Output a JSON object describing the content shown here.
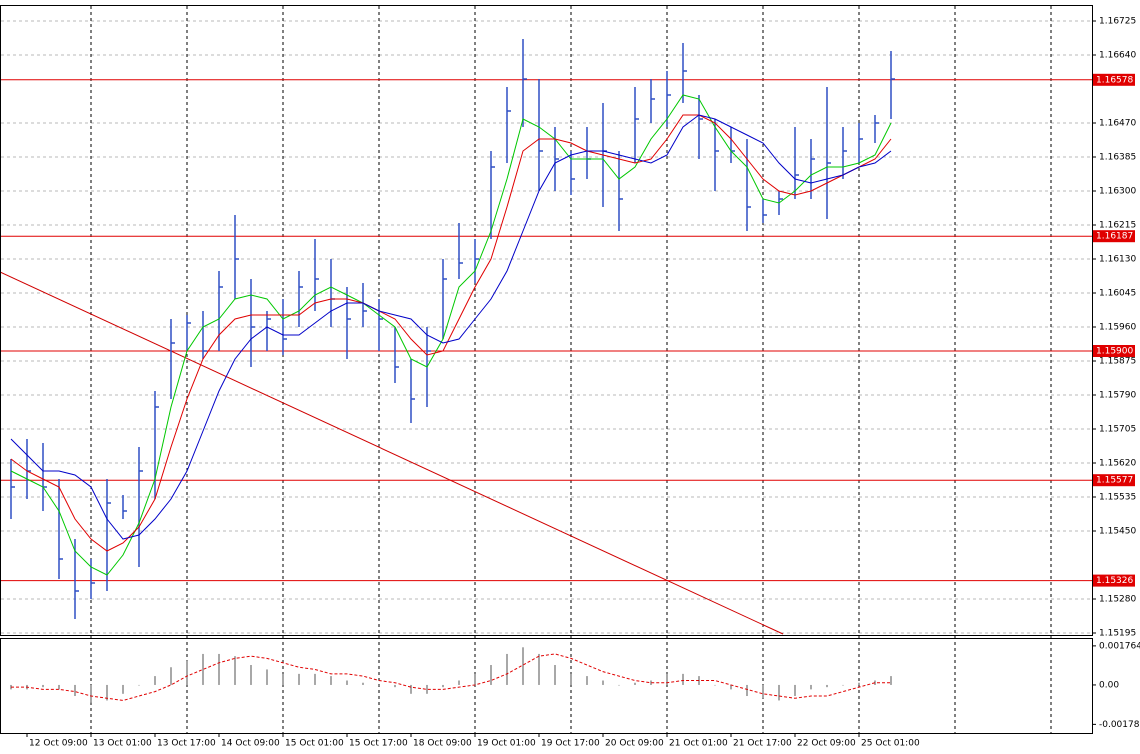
{
  "chart_data": [
    {
      "type": "ohlc",
      "categories": [
        null,
        "12 Oct 09:00",
        null,
        null,
        null,
        "13 Oct 01:00",
        null,
        null,
        null,
        "13 Oct 17:00",
        null,
        null,
        null,
        "14 Oct 09:00",
        null,
        null,
        null,
        "15 Oct 01:00",
        null,
        null,
        null,
        "15 Oct 17:00",
        null,
        null,
        null,
        "18 Oct 09:00",
        null,
        null,
        null,
        "19 Oct 01:00",
        null,
        null,
        null,
        "19 Oct 17:00",
        null,
        null,
        null,
        "20 Oct 09:00",
        null,
        null,
        null,
        "21 Oct 01:00",
        null,
        null,
        null,
        "21 Oct 17:00",
        null,
        null,
        null,
        "22 Oct 09:00",
        null,
        null,
        null,
        "25 Oct 01:00",
        null,
        null
      ],
      "high": [
        1.1563,
        1.1568,
        1.1567,
        1.1558,
        1.1543,
        1.1538,
        1.1558,
        1.1554,
        1.1566,
        1.158,
        1.1598,
        1.1599,
        1.16,
        1.161,
        1.1624,
        1.1608,
        1.16,
        1.1603,
        1.161,
        1.1618,
        1.1613,
        1.1606,
        1.1607,
        1.1603,
        1.1596,
        1.1588,
        1.1596,
        1.1613,
        1.1622,
        1.1618,
        1.164,
        1.1656,
        1.1668,
        1.1658,
        1.1646,
        1.164,
        1.1646,
        1.1652,
        1.164,
        1.1656,
        1.1658,
        1.166,
        1.1667,
        1.1654,
        1.1648,
        1.1646,
        1.1643,
        1.1628,
        1.163,
        1.1646,
        1.1643,
        1.1656,
        1.1646,
        1.1647,
        1.1649,
        1.1665
      ],
      "low": [
        1.1548,
        1.1553,
        1.155,
        1.1533,
        1.1523,
        1.1528,
        1.153,
        1.1548,
        1.1536,
        1.1553,
        1.1578,
        1.159,
        1.1588,
        1.159,
        1.1603,
        1.1586,
        1.159,
        1.1589,
        1.1596,
        1.16,
        1.1596,
        1.1588,
        1.1596,
        1.159,
        1.1582,
        1.1572,
        1.1576,
        1.1593,
        1.1608,
        1.1607,
        1.1618,
        1.1637,
        1.1646,
        1.163,
        1.163,
        1.1629,
        1.1633,
        1.1626,
        1.162,
        1.1637,
        1.1647,
        1.1646,
        1.1652,
        1.1638,
        1.163,
        1.1637,
        1.162,
        1.1622,
        1.1624,
        1.1628,
        1.1628,
        1.1623,
        1.1633,
        1.1637,
        1.1642,
        1.1648
      ],
      "close": [
        1.1556,
        1.156,
        1.1556,
        1.1538,
        1.153,
        1.1532,
        1.1552,
        1.155,
        1.156,
        1.1576,
        1.1592,
        1.1597,
        1.159,
        1.1606,
        1.1613,
        1.1596,
        1.1598,
        1.1593,
        1.1606,
        1.1608,
        1.1603,
        1.1598,
        1.16,
        1.1598,
        1.1586,
        1.1578,
        1.159,
        1.1608,
        1.1612,
        1.1613,
        1.1636,
        1.165,
        1.1658,
        1.164,
        1.1638,
        1.1633,
        1.1638,
        1.164,
        1.1628,
        1.1648,
        1.1653,
        1.1654,
        1.166,
        1.1648,
        1.164,
        1.164,
        1.1626,
        1.1624,
        1.1628,
        1.1634,
        1.1638,
        1.1637,
        1.164,
        1.1643,
        1.1647,
        1.1658
      ],
      "color": "#2f4fc4",
      "moving_averages": [
        {
          "color": "#00c800",
          "values": [
            1.156,
            1.1558,
            1.1556,
            1.155,
            1.154,
            1.1536,
            1.1534,
            1.1539,
            1.1547,
            1.1558,
            1.1576,
            1.159,
            1.1596,
            1.1598,
            1.1603,
            1.1604,
            1.1603,
            1.1598,
            1.16,
            1.1604,
            1.1606,
            1.1604,
            1.1602,
            1.1599,
            1.1596,
            1.1588,
            1.1586,
            1.1593,
            1.1606,
            1.161,
            1.162,
            1.1633,
            1.1648,
            1.1646,
            1.1643,
            1.1638,
            1.1638,
            1.1638,
            1.1633,
            1.1636,
            1.1643,
            1.1648,
            1.1654,
            1.1653,
            1.1646,
            1.164,
            1.1636,
            1.1628,
            1.1627,
            1.163,
            1.1634,
            1.1636,
            1.1636,
            1.1637,
            1.1639,
            1.1647
          ]
        },
        {
          "color": "#e00000",
          "values": [
            1.1563,
            1.156,
            1.1558,
            1.1556,
            1.1548,
            1.1543,
            1.154,
            1.1542,
            1.1546,
            1.1553,
            1.1566,
            1.1578,
            1.1588,
            1.1594,
            1.1598,
            1.1599,
            1.1599,
            1.1599,
            1.1599,
            1.1602,
            1.1603,
            1.1603,
            1.1602,
            1.16,
            1.1598,
            1.1593,
            1.1589,
            1.159,
            1.1598,
            1.1606,
            1.1613,
            1.1626,
            1.164,
            1.1643,
            1.1643,
            1.1642,
            1.164,
            1.1639,
            1.1638,
            1.1637,
            1.1638,
            1.1643,
            1.1649,
            1.1649,
            1.1647,
            1.1643,
            1.1638,
            1.1633,
            1.163,
            1.1629,
            1.163,
            1.1632,
            1.1634,
            1.1636,
            1.1638,
            1.1643
          ]
        },
        {
          "color": "#0000c8",
          "values": [
            1.1568,
            1.1564,
            1.156,
            1.156,
            1.1559,
            1.1556,
            1.1548,
            1.1543,
            1.1544,
            1.1548,
            1.1553,
            1.156,
            1.157,
            1.158,
            1.1588,
            1.1593,
            1.1596,
            1.1594,
            1.1594,
            1.1597,
            1.16,
            1.1602,
            1.1602,
            1.16,
            1.1599,
            1.1598,
            1.1594,
            1.1592,
            1.1593,
            1.1598,
            1.1603,
            1.161,
            1.162,
            1.163,
            1.1637,
            1.1639,
            1.164,
            1.164,
            1.1639,
            1.1638,
            1.1637,
            1.1639,
            1.1646,
            1.1649,
            1.1648,
            1.1646,
            1.1644,
            1.1642,
            1.1637,
            1.1633,
            1.1632,
            1.1633,
            1.1634,
            1.1636,
            1.1637,
            1.164
          ]
        }
      ],
      "levels": [
        {
          "value": 1.16578,
          "color": "#e00000"
        },
        {
          "value": 1.16187,
          "color": "#e00000"
        },
        {
          "value": 1.159,
          "label": "1.15900",
          "color": "#e00000"
        },
        {
          "value": 1.15577,
          "color": "#e00000"
        },
        {
          "value": 1.15326,
          "color": "#e00000"
        }
      ],
      "trendline": {
        "x": [
          -0.6875,
          48.25
        ],
        "y": [
          1.160975,
          1.151925
        ],
        "color": "#d00000"
      },
      "ylim": [
        1.1519,
        1.16765
      ],
      "yticks": [
        {
          "value": 1.16725,
          "label": "1.16725"
        },
        {
          "value": 1.1664,
          "label": "1.16640"
        },
        {
          "value": 1.1647,
          "label": "1.16470"
        },
        {
          "value": 1.16385,
          "label": "1.16385"
        },
        {
          "value": 1.163,
          "label": "1.16300"
        },
        {
          "value": 1.16215,
          "label": "1.16215"
        },
        {
          "value": 1.1613,
          "label": "1.16130"
        },
        {
          "value": 1.16045,
          "label": "1.16045"
        },
        {
          "value": 1.1596,
          "label": "1.15960"
        },
        {
          "value": 1.15875,
          "label": "1.15875"
        },
        {
          "value": 1.1579,
          "label": "1.15790"
        },
        {
          "value": 1.15705,
          "label": "1.15705"
        },
        {
          "value": 1.1562,
          "label": "1.15620"
        },
        {
          "value": 1.15535,
          "label": "1.15535"
        },
        {
          "value": 1.1545,
          "label": "1.15450"
        },
        {
          "value": 1.1528,
          "label": "1.15280"
        },
        {
          "value": 1.15195,
          "label": "1.15195"
        }
      ],
      "grid": true
    },
    {
      "type": "macd",
      "histogram": [
        -0.0002,
        -0.0002,
        -0.0001,
        -0.0002,
        -0.0005,
        -0.0008,
        -0.0007,
        -0.0004,
        0,
        0.0004,
        0.0008,
        0.0011,
        0.0014,
        0.0014,
        0.0013,
        0.0009,
        0.0007,
        0.0005,
        0.0005,
        0.0005,
        0.0004,
        0.0002,
        0.0001,
        0,
        -0.0001,
        -0.0004,
        -0.0004,
        -0.0001,
        0.0002,
        0.0005,
        0.0009,
        0.0014,
        0.0017,
        0.0014,
        0.0009,
        0.0005,
        0.0004,
        0.0002,
        0,
        0.0001,
        0.0002,
        0.0005,
        0.0005,
        0.0004,
        0,
        -0.0002,
        -0.0005,
        -0.0006,
        -0.0007,
        -0.0005,
        -0.0002,
        -0.0001,
        0,
        0.0001,
        0.0002,
        0.0004
      ],
      "signal": [
        -0.0001,
        -0.0001,
        -0.0002,
        -0.0002,
        -0.0003,
        -0.0005,
        -0.0006,
        -0.0007,
        -0.0005,
        -0.0003,
        0,
        0.0004,
        0.0007,
        0.001,
        0.0012,
        0.0013,
        0.0012,
        0.001,
        0.0008,
        0.0007,
        0.0005,
        0.0005,
        0.0004,
        0.0002,
        0.0001,
        -0.0001,
        -0.0002,
        -0.0002,
        -0.0001,
        0,
        0.0002,
        0.0005,
        0.0009,
        0.0013,
        0.0014,
        0.0012,
        0.0009,
        0.0006,
        0.0004,
        0.0002,
        0.0001,
        0.0001,
        0.0002,
        0.0002,
        0.0002,
        0,
        -0.0002,
        -0.0004,
        -0.0005,
        -0.0006,
        -0.0005,
        -0.0005,
        -0.0003,
        -0.0001,
        0.0001,
        0.0001
      ],
      "histogram_color": "#a8a8a8",
      "signal_color": "#e00000",
      "ylim": [
        -0.00217,
        0.00212
      ],
      "yticks": [
        0.001764,
        {
          "value": 0,
          "label": "0.00"
        },
        -0.00178
      ]
    }
  ]
}
